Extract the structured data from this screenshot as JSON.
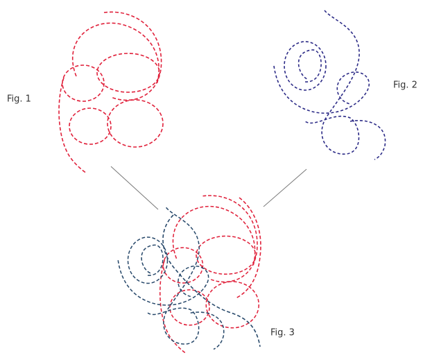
{
  "figures": [
    {
      "label": "Fig. 1"
    },
    {
      "label": "Fig. 2"
    },
    {
      "label": "Fig. 3"
    }
  ]
}
